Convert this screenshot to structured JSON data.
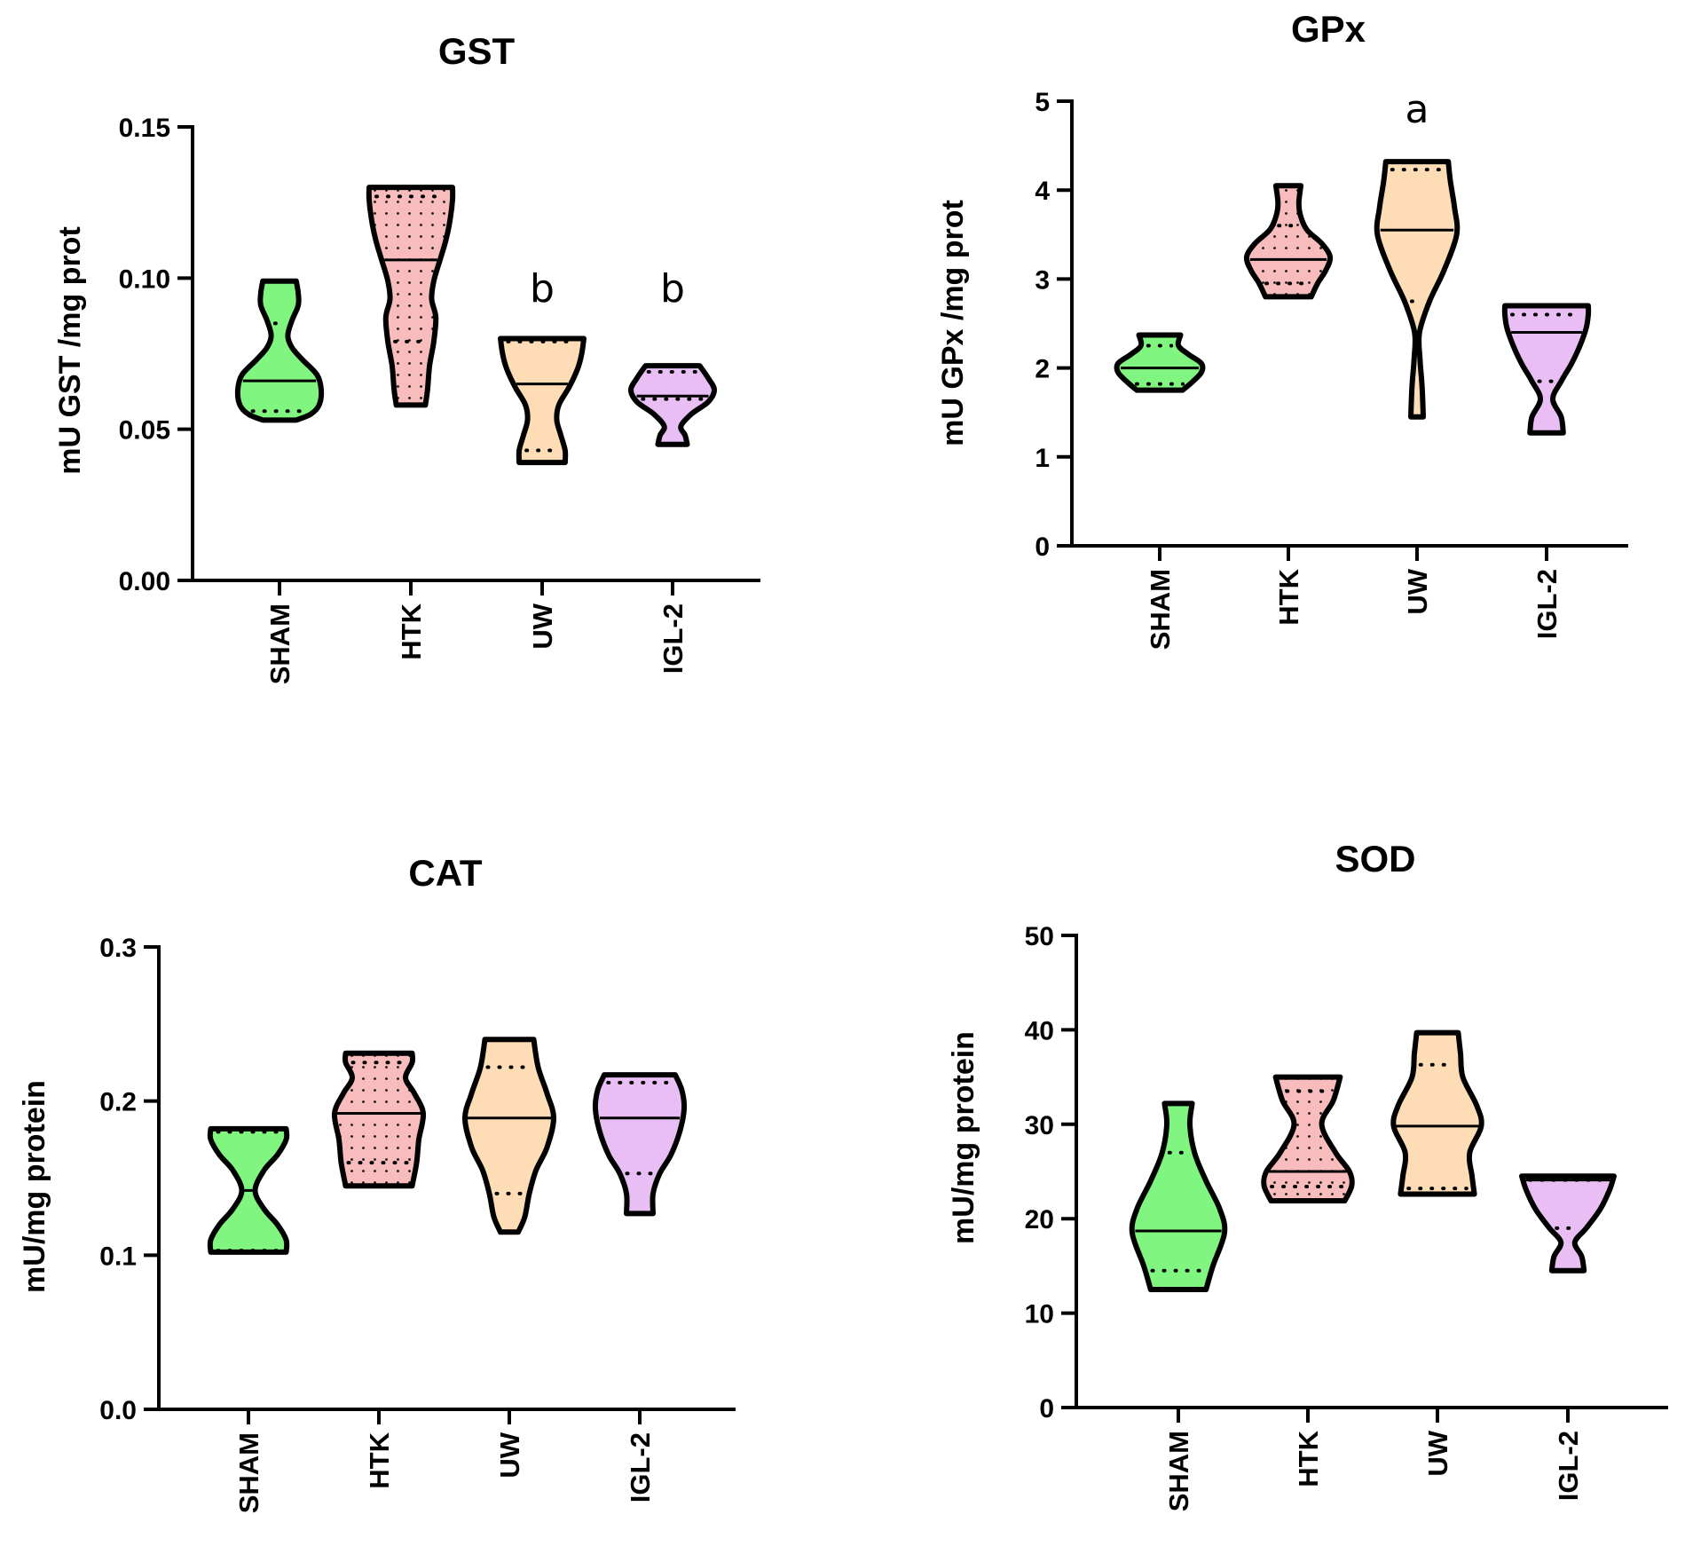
{
  "chart_data": [
    {
      "type": "violin",
      "title": "GST",
      "ylabel": "mU GST /mg prot",
      "categories": [
        "SHAM",
        "HTK",
        "UW",
        "IGL-2"
      ],
      "yticks": [
        "0.00",
        "0.05",
        "0.10",
        "0.15"
      ],
      "ylim": [
        0,
        0.15
      ],
      "annotations": [
        {
          "category": "UW",
          "text": "b"
        },
        {
          "category": "IGL-2",
          "text": "b"
        }
      ],
      "series": [
        {
          "name": "SHAM",
          "color": "#80f680",
          "pattern": false,
          "min": 0.053,
          "q1": 0.056,
          "median": 0.066,
          "q3": 0.085,
          "max": 0.099,
          "profile": [
            [
              0.053,
              0.4
            ],
            [
              0.055,
              0.75
            ],
            [
              0.058,
              0.95
            ],
            [
              0.063,
              1.0
            ],
            [
              0.068,
              0.9
            ],
            [
              0.073,
              0.55
            ],
            [
              0.077,
              0.3
            ],
            [
              0.081,
              0.2
            ],
            [
              0.086,
              0.3
            ],
            [
              0.091,
              0.45
            ],
            [
              0.095,
              0.45
            ],
            [
              0.099,
              0.4
            ]
          ]
        },
        {
          "name": "HTK",
          "color": "#f8bcbc",
          "pattern": true,
          "min": 0.058,
          "q1": 0.079,
          "median": 0.106,
          "q3": 0.127,
          "max": 0.13,
          "profile": [
            [
              0.058,
              0.35
            ],
            [
              0.063,
              0.4
            ],
            [
              0.071,
              0.45
            ],
            [
              0.079,
              0.55
            ],
            [
              0.087,
              0.6
            ],
            [
              0.093,
              0.5
            ],
            [
              0.099,
              0.55
            ],
            [
              0.106,
              0.7
            ],
            [
              0.113,
              0.85
            ],
            [
              0.12,
              0.95
            ],
            [
              0.126,
              1.0
            ],
            [
              0.13,
              1.0
            ]
          ]
        },
        {
          "name": "UW",
          "color": "#fddcb6",
          "pattern": false,
          "min": 0.039,
          "q1": 0.043,
          "median": 0.065,
          "q3": 0.079,
          "max": 0.08,
          "profile": [
            [
              0.039,
              0.55
            ],
            [
              0.043,
              0.55
            ],
            [
              0.048,
              0.45
            ],
            [
              0.053,
              0.35
            ],
            [
              0.058,
              0.4
            ],
            [
              0.064,
              0.65
            ],
            [
              0.07,
              0.85
            ],
            [
              0.075,
              0.95
            ],
            [
              0.08,
              1.0
            ]
          ]
        },
        {
          "name": "IGL-2",
          "color": "#e9bef5",
          "pattern": false,
          "min": 0.045,
          "q1": 0.06,
          "median": 0.061,
          "q3": 0.069,
          "max": 0.071,
          "profile": [
            [
              0.045,
              0.35
            ],
            [
              0.048,
              0.3
            ],
            [
              0.051,
              0.2
            ],
            [
              0.055,
              0.45
            ],
            [
              0.059,
              0.85
            ],
            [
              0.063,
              1.0
            ],
            [
              0.067,
              0.85
            ],
            [
              0.071,
              0.65
            ]
          ]
        }
      ]
    },
    {
      "type": "violin",
      "title": "GPx",
      "ylabel": "mU GPx /mg prot",
      "categories": [
        "SHAM",
        "HTK",
        "UW",
        "IGL-2"
      ],
      "yticks": [
        "0",
        "1",
        "2",
        "3",
        "4",
        "5"
      ],
      "ylim": [
        0,
        5
      ],
      "annotations": [
        {
          "category": "UW",
          "text": "a"
        }
      ],
      "series": [
        {
          "name": "SHAM",
          "color": "#80f680",
          "pattern": false,
          "min": 1.75,
          "q1": 1.82,
          "median": 2.0,
          "q3": 2.25,
          "max": 2.37,
          "profile": [
            [
              1.75,
              0.55
            ],
            [
              1.85,
              0.8
            ],
            [
              1.95,
              1.0
            ],
            [
              2.05,
              1.0
            ],
            [
              2.15,
              0.7
            ],
            [
              2.25,
              0.45
            ],
            [
              2.37,
              0.5
            ]
          ]
        },
        {
          "name": "HTK",
          "color": "#f8bcbc",
          "pattern": true,
          "min": 2.8,
          "q1": 2.95,
          "median": 3.22,
          "q3": 3.6,
          "max": 4.05,
          "profile": [
            [
              2.8,
              0.55
            ],
            [
              2.95,
              0.7
            ],
            [
              3.1,
              0.9
            ],
            [
              3.25,
              1.0
            ],
            [
              3.4,
              0.8
            ],
            [
              3.55,
              0.45
            ],
            [
              3.7,
              0.3
            ],
            [
              3.85,
              0.25
            ],
            [
              4.05,
              0.3
            ]
          ]
        },
        {
          "name": "UW",
          "color": "#fddcb6",
          "pattern": false,
          "min": 1.45,
          "q1": 2.75,
          "median": 3.55,
          "q3": 4.23,
          "max": 4.32,
          "profile": [
            [
              1.45,
              0.15
            ],
            [
              1.8,
              0.12
            ],
            [
              2.1,
              0.07
            ],
            [
              2.4,
              0.06
            ],
            [
              2.75,
              0.3
            ],
            [
              3.1,
              0.65
            ],
            [
              3.5,
              0.95
            ],
            [
              3.8,
              0.9
            ],
            [
              4.1,
              0.8
            ],
            [
              4.32,
              0.75
            ]
          ]
        },
        {
          "name": "IGL-2",
          "color": "#e9bef5",
          "pattern": false,
          "min": 1.27,
          "q1": 1.85,
          "median": 2.4,
          "q3": 2.6,
          "max": 2.7,
          "profile": [
            [
              1.27,
              0.4
            ],
            [
              1.45,
              0.35
            ],
            [
              1.65,
              0.15
            ],
            [
              1.85,
              0.35
            ],
            [
              2.05,
              0.6
            ],
            [
              2.25,
              0.8
            ],
            [
              2.45,
              0.95
            ],
            [
              2.6,
              1.0
            ],
            [
              2.7,
              1.0
            ]
          ]
        }
      ]
    },
    {
      "type": "violin",
      "title": "CAT",
      "ylabel": "mU/mg protein",
      "categories": [
        "SHAM",
        "HTK",
        "UW",
        "IGL-2"
      ],
      "yticks": [
        "0.0",
        "0.1",
        "0.2",
        "0.3"
      ],
      "ylim": [
        0,
        0.3
      ],
      "annotations": [],
      "series": [
        {
          "name": "SHAM",
          "color": "#80f680",
          "pattern": false,
          "min": 0.102,
          "q1": 0.103,
          "median": 0.142,
          "q3": 0.18,
          "max": 0.182,
          "profile": [
            [
              0.102,
              0.85
            ],
            [
              0.11,
              0.85
            ],
            [
              0.12,
              0.65
            ],
            [
              0.13,
              0.35
            ],
            [
              0.142,
              0.15
            ],
            [
              0.155,
              0.35
            ],
            [
              0.165,
              0.65
            ],
            [
              0.175,
              0.85
            ],
            [
              0.182,
              0.85
            ]
          ]
        },
        {
          "name": "HTK",
          "color": "#f8bcbc",
          "pattern": true,
          "min": 0.145,
          "q1": 0.16,
          "median": 0.192,
          "q3": 0.225,
          "max": 0.231,
          "profile": [
            [
              0.145,
              0.75
            ],
            [
              0.16,
              0.85
            ],
            [
              0.175,
              0.9
            ],
            [
              0.192,
              1.0
            ],
            [
              0.205,
              0.8
            ],
            [
              0.215,
              0.6
            ],
            [
              0.225,
              0.75
            ],
            [
              0.231,
              0.75
            ]
          ]
        },
        {
          "name": "UW",
          "color": "#fddcb6",
          "pattern": false,
          "min": 0.115,
          "q1": 0.14,
          "median": 0.189,
          "q3": 0.222,
          "max": 0.24,
          "profile": [
            [
              0.115,
              0.2
            ],
            [
              0.125,
              0.35
            ],
            [
              0.14,
              0.45
            ],
            [
              0.155,
              0.6
            ],
            [
              0.17,
              0.85
            ],
            [
              0.189,
              1.0
            ],
            [
              0.205,
              0.85
            ],
            [
              0.222,
              0.65
            ],
            [
              0.24,
              0.55
            ]
          ]
        },
        {
          "name": "IGL-2",
          "color": "#e9bef5",
          "pattern": false,
          "min": 0.127,
          "q1": 0.153,
          "median": 0.189,
          "q3": 0.212,
          "max": 0.217,
          "profile": [
            [
              0.127,
              0.3
            ],
            [
              0.14,
              0.3
            ],
            [
              0.153,
              0.45
            ],
            [
              0.165,
              0.7
            ],
            [
              0.18,
              0.9
            ],
            [
              0.195,
              1.0
            ],
            [
              0.207,
              0.95
            ],
            [
              0.217,
              0.8
            ]
          ]
        }
      ]
    },
    {
      "type": "violin",
      "title": "SOD",
      "ylabel": "mU/mg protein",
      "categories": [
        "SHAM",
        "HTK",
        "UW",
        "IGL-2"
      ],
      "yticks": [
        "0",
        "10",
        "20",
        "30",
        "40",
        "50"
      ],
      "ylim": [
        0,
        50
      ],
      "annotations": [],
      "series": [
        {
          "name": "SHAM",
          "color": "#80f680",
          "pattern": false,
          "min": 12.5,
          "q1": 14.5,
          "median": 18.7,
          "q3": 27.0,
          "max": 32.2,
          "profile": [
            [
              12.5,
              0.6
            ],
            [
              15,
              0.75
            ],
            [
              18.5,
              1.0
            ],
            [
              21,
              0.9
            ],
            [
              24,
              0.6
            ],
            [
              27,
              0.35
            ],
            [
              30,
              0.25
            ],
            [
              32.2,
              0.3
            ]
          ]
        },
        {
          "name": "HTK",
          "color": "#f8bcbc",
          "pattern": true,
          "min": 21.9,
          "q1": 23.4,
          "median": 25.0,
          "q3": 33.5,
          "max": 35.0,
          "profile": [
            [
              21.9,
              0.8
            ],
            [
              23.5,
              0.95
            ],
            [
              25,
              0.9
            ],
            [
              27,
              0.6
            ],
            [
              30,
              0.3
            ],
            [
              32.5,
              0.55
            ],
            [
              35,
              0.7
            ]
          ]
        },
        {
          "name": "UW",
          "color": "#fddcb6",
          "pattern": false,
          "min": 22.6,
          "q1": 23.2,
          "median": 29.8,
          "q3": 36.3,
          "max": 39.7,
          "profile": [
            [
              22.6,
              0.8
            ],
            [
              24.5,
              0.75
            ],
            [
              27,
              0.7
            ],
            [
              29.8,
              0.95
            ],
            [
              32,
              0.85
            ],
            [
              35,
              0.55
            ],
            [
              37.5,
              0.5
            ],
            [
              39.7,
              0.45
            ]
          ]
        },
        {
          "name": "IGL-2",
          "color": "#e9bef5",
          "pattern": false,
          "min": 14.5,
          "q1": 19.0,
          "median": 24.1,
          "q3": 24.1,
          "max": 24.5,
          "profile": [
            [
              14.5,
              0.35
            ],
            [
              16,
              0.3
            ],
            [
              17.5,
              0.15
            ],
            [
              19,
              0.4
            ],
            [
              21,
              0.7
            ],
            [
              23,
              0.9
            ],
            [
              24.5,
              1.0
            ]
          ]
        }
      ]
    }
  ]
}
